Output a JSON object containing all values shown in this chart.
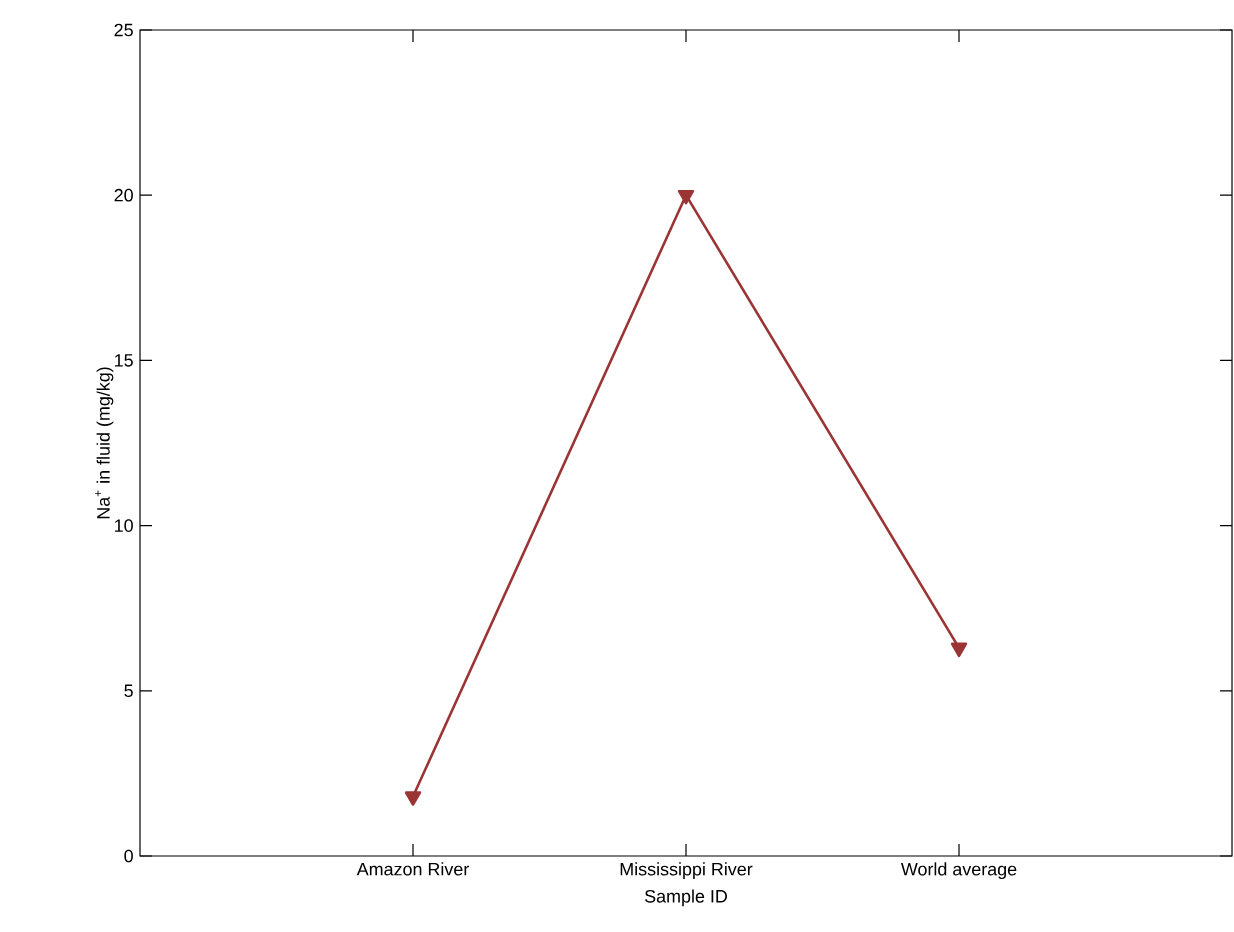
{
  "chart_data": {
    "type": "line",
    "xlabel": "Sample ID",
    "ylabel": "Na$^{+}$ in fluid (mg/kg)",
    "categories": [
      "Amazon River",
      "Mississippi River",
      "World average"
    ],
    "series": [
      {
        "color": "#9b3535",
        "values": [
          1.8,
          20,
          6.3
        ]
      }
    ],
    "ylim": [
      0,
      25
    ],
    "yticks": [
      0,
      5,
      10,
      15,
      20,
      25
    ],
    "marker": "triangle",
    "line_style": "solid"
  }
}
